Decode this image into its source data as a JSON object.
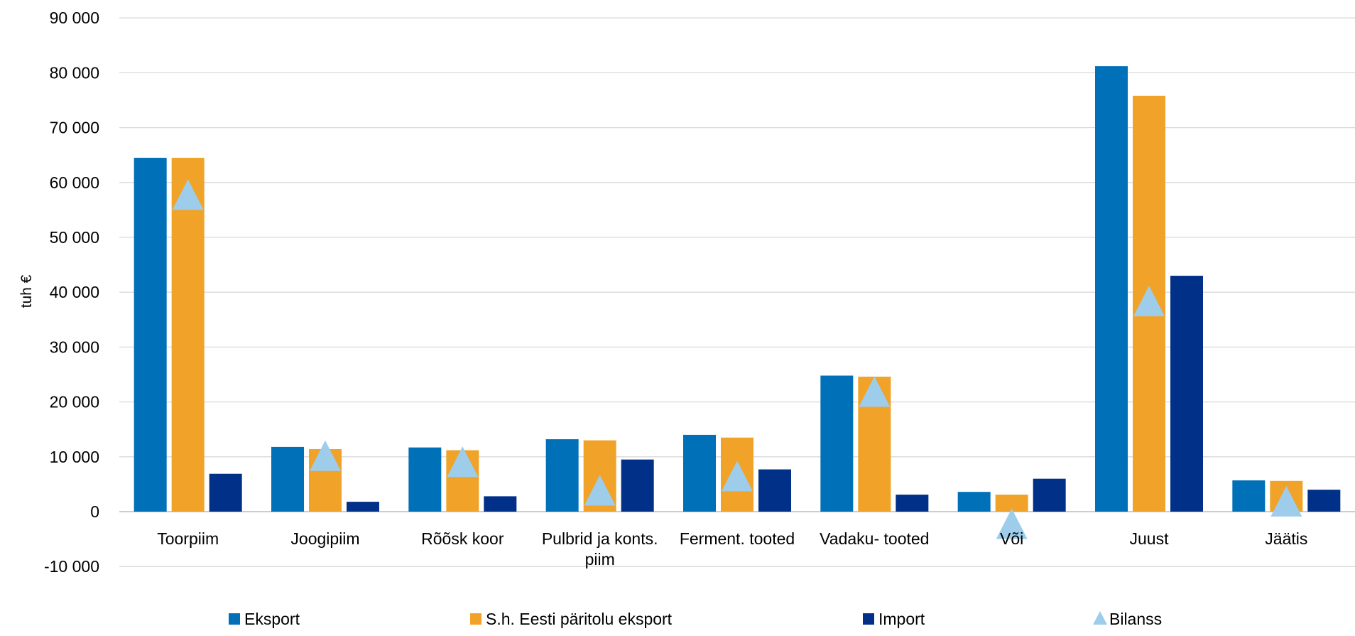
{
  "chart_data": {
    "type": "bar",
    "title": "",
    "xlabel": "",
    "ylabel": "tuh €",
    "ylim": [
      -10000,
      90000
    ],
    "yticks": [
      -10000,
      0,
      10000,
      20000,
      30000,
      40000,
      50000,
      60000,
      70000,
      80000,
      90000
    ],
    "ytick_labels": [
      "-10 000",
      "0",
      "10 000",
      "20 000",
      "30 000",
      "40 000",
      "50 000",
      "60 000",
      "70 000",
      "80 000",
      "90 000"
    ],
    "grid": true,
    "legend_position": "bottom",
    "categories": [
      "Toorpiim",
      "Joogipiim",
      "Rõõsk koor",
      "Pulbrid ja konts. piim",
      "Ferment. tooted",
      "Vadaku- tooted",
      "Või",
      "Juust",
      "Jäätis"
    ],
    "series": [
      {
        "name": "Eksport",
        "kind": "bar",
        "color": "#0070B8",
        "values": [
          64500,
          11800,
          11700,
          13200,
          14000,
          24800,
          3600,
          81200,
          5700
        ]
      },
      {
        "name": "S.h. Eesti päritolu eksport",
        "kind": "bar",
        "color": "#F0A328",
        "values": [
          64500,
          11400,
          11200,
          13000,
          13500,
          24600,
          3100,
          75800,
          5600
        ]
      },
      {
        "name": "Import",
        "kind": "bar",
        "color": "#003087",
        "values": [
          6900,
          1800,
          2800,
          9500,
          7700,
          3100,
          6000,
          43000,
          4000
        ]
      },
      {
        "name": "Bilanss",
        "kind": "marker",
        "color": "#9DCDEB",
        "values": [
          57600,
          10000,
          8900,
          3700,
          6300,
          21700,
          -2400,
          38200,
          1700
        ]
      }
    ]
  }
}
